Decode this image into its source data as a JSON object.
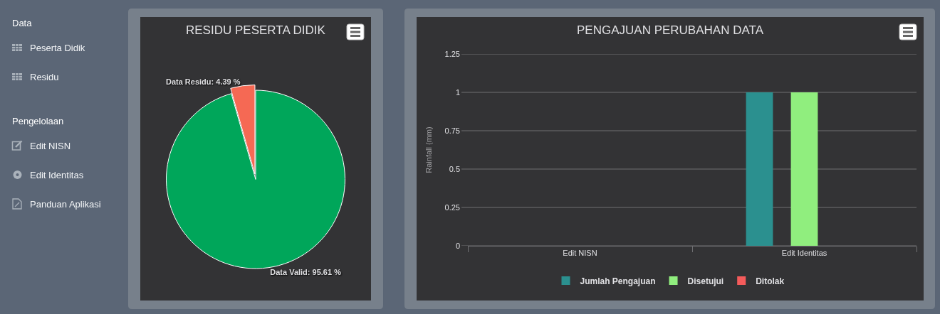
{
  "chart_data": [
    {
      "type": "other",
      "title": "Data",
      "annotations": [
        "Peserta Didik",
        "Residu"
      ]
    },
    {
      "type": "other",
      "title": "Pengelolaan",
      "annotations": [
        "Edit NISN",
        "Edit Identitas",
        "Panduan Aplikasi"
      ]
    },
    {
      "type": "pie",
      "title": "RESIDU PESERTA DIDIK",
      "categories": [
        "Data Valid",
        "Data Residu"
      ],
      "values": [
        95.61,
        4.39
      ],
      "colors": [
        "#00a65a",
        "#f56954"
      ],
      "value_labels": [
        "95.61 %",
        "4.39 %"
      ]
    },
    {
      "type": "bar",
      "title": "PENGAJUAN PERUBAHAN DATA",
      "ylabel": "Rainfall (mm)",
      "categories": [
        "Edit NISN",
        "Edit Identitas"
      ],
      "series": [
        {
          "name": "Jumlah Pengajuan",
          "color": "#2b908f",
          "values": [
            0,
            1
          ]
        },
        {
          "name": "Disetujui",
          "color": "#90ee7e",
          "values": [
            0,
            1
          ]
        },
        {
          "name": "Ditolak",
          "color": "#f45b5b",
          "values": [
            0,
            0
          ]
        }
      ],
      "ylim": [
        0,
        1.25
      ],
      "yticks": [
        0,
        0.25,
        0.5,
        0.75,
        1,
        1.25
      ],
      "grid": "y",
      "legend": "bottom"
    }
  ]
}
